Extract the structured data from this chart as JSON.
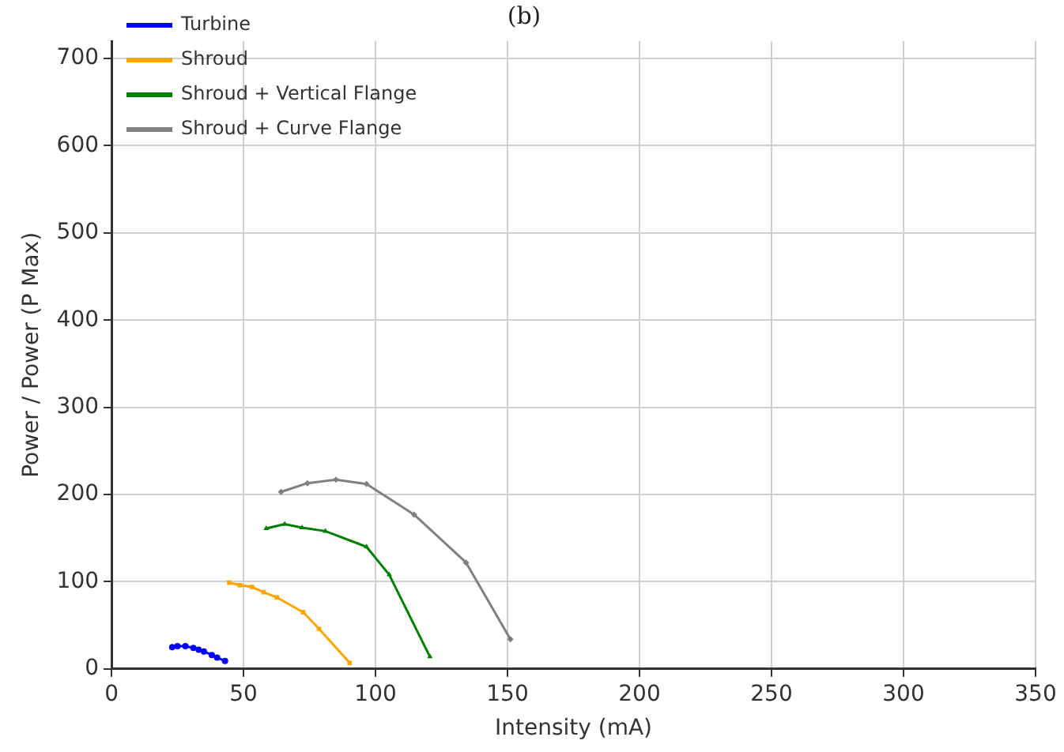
{
  "chart_data": {
    "type": "line",
    "title": "(b)",
    "xlabel": "Intensity (mA)",
    "ylabel": "Power / Power (P Max)",
    "xlim": [
      0,
      350
    ],
    "xticks": [
      0,
      50,
      100,
      150,
      200,
      250,
      300,
      350
    ],
    "ylim": [
      0,
      720
    ],
    "yticks": [
      0,
      100,
      200,
      300,
      400,
      500,
      600,
      700
    ],
    "grid": true,
    "legend": "top left",
    "series": [
      {
        "name": "Turbine",
        "color": "#0000ff",
        "marker": "circle",
        "x": [
          23,
          25,
          28,
          31,
          33,
          35,
          38,
          40,
          43
        ],
        "values": [
          25,
          26,
          26,
          24,
          22,
          20,
          16,
          13,
          9
        ]
      },
      {
        "name": "Shroud",
        "color": "#ffa500",
        "marker": "square",
        "x": [
          44.6,
          48.6,
          53.2,
          57.6,
          62.6,
          72.6,
          78.6,
          90.2
        ],
        "values": [
          99,
          96,
          94,
          88,
          82,
          65,
          46,
          7
        ]
      },
      {
        "name": "Shroud + Vertical Flange",
        "color": "#008000",
        "marker": "triangle",
        "x": [
          58.6,
          65.6,
          72.2,
          81,
          96.6,
          105.2,
          120.6
        ],
        "values": [
          161,
          166,
          162,
          158,
          140,
          108,
          14
        ]
      },
      {
        "name": "Shroud + Curve Flange",
        "color": "#808080",
        "marker": "diamond",
        "x": [
          64.2,
          74.2,
          85,
          96.6,
          114.6,
          134.3,
          151.1
        ],
        "values": [
          203,
          213,
          217,
          212,
          177,
          122,
          34
        ]
      }
    ]
  }
}
